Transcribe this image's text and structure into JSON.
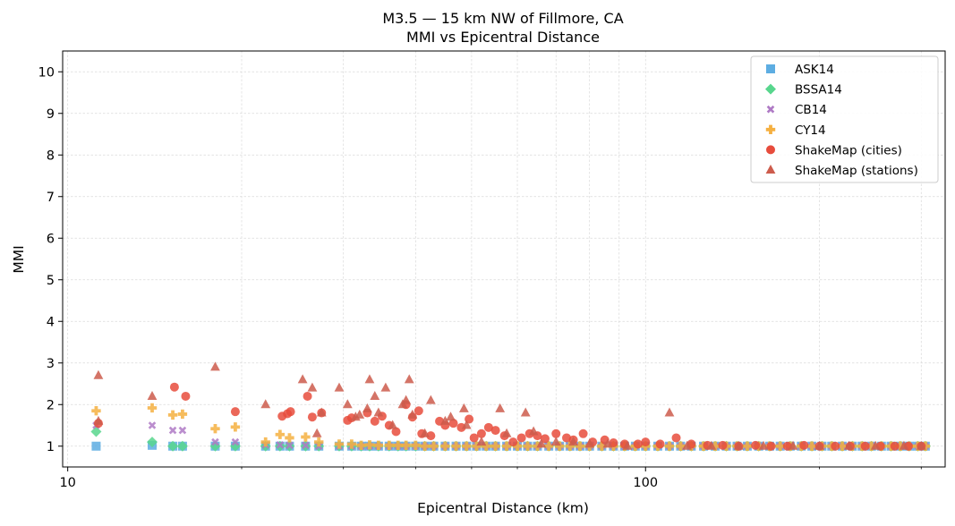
{
  "chart_data": {
    "type": "scatter",
    "title": "M3.5 — 15 km NW of Fillmore, CA",
    "subtitle": "MMI vs Epicentral Distance",
    "xlabel": "Epicentral Distance (km)",
    "ylabel": "MMI",
    "x_scale": "log",
    "xlim": [
      9.8,
      330
    ],
    "ylim": [
      0.5,
      10.5
    ],
    "x_ticks": [
      10,
      100
    ],
    "x_tick_labels": [
      "10",
      "100"
    ],
    "y_ticks": [
      1,
      2,
      3,
      4,
      5,
      6,
      7,
      8,
      9,
      10
    ],
    "y_tick_labels": [
      "1",
      "2",
      "3",
      "4",
      "5",
      "6",
      "7",
      "8",
      "9",
      "10"
    ],
    "grid": true,
    "legend_position": "top-right",
    "gmpe_distances": [
      11.2,
      14.0,
      15.2,
      15.8,
      18.0,
      19.5,
      22.0,
      23.3,
      24.2,
      25.8,
      27.2,
      29.5,
      31.0,
      32.2,
      33.3,
      34.5,
      36.0,
      37.3,
      38.5,
      40.0,
      41.5,
      43.0,
      45.0,
      47.0,
      49.0,
      51.0,
      53.0,
      55.0,
      57.5,
      60.0,
      62.5,
      65.0,
      68.0,
      71.0,
      74.0,
      77.0,
      80.0,
      84.0,
      88.0,
      92.0,
      96.0,
      100.0,
      105.0,
      110.0,
      115.0,
      120.0,
      126.0,
      132.0,
      138.0,
      144.0,
      150.0,
      157.0,
      164.0,
      171.0,
      178.0,
      186.0,
      194.0,
      202.0,
      210.0,
      219.0,
      228.0,
      237.0,
      246.0,
      256.0,
      266.0,
      276.0,
      286.0,
      296.0,
      305.0
    ],
    "series": [
      {
        "name": "ASK14",
        "color": "#5dade2",
        "marker": "square",
        "y": [
          1.0,
          1.02,
          1.0,
          1.0,
          1.0,
          1.0,
          1.0,
          1.0,
          1.0,
          1.0,
          1.0,
          1.0,
          1.0,
          1.0,
          1.0,
          1.0,
          1.0,
          1.0,
          1.0,
          1.0,
          1.0,
          1.0,
          1.0,
          1.0,
          1.0,
          1.0,
          1.0,
          1.0,
          1.0,
          1.0,
          1.0,
          1.0,
          1.0,
          1.0,
          1.0,
          1.0,
          1.0,
          1.0,
          1.0,
          1.0,
          1.0,
          1.0,
          1.0,
          1.0,
          1.0,
          1.0,
          1.0,
          1.0,
          1.0,
          1.0,
          1.0,
          1.0,
          1.0,
          1.0,
          1.0,
          1.0,
          1.0,
          1.0,
          1.0,
          1.0,
          1.0,
          1.0,
          1.0,
          1.0,
          1.0,
          1.0,
          1.0,
          1.0,
          1.0
        ]
      },
      {
        "name": "BSSA14",
        "color": "#58d68d",
        "marker": "diamond",
        "y": [
          1.35,
          1.1,
          1.0,
          1.0,
          1.0,
          1.0,
          1.0,
          1.0,
          1.0,
          1.0,
          1.0,
          1.0,
          1.0,
          1.0,
          1.0,
          1.0,
          1.0,
          1.0,
          1.0,
          1.0,
          1.0,
          1.0,
          1.0,
          1.0,
          1.0,
          1.0,
          1.0,
          1.0,
          1.0,
          1.0,
          1.0,
          1.0,
          1.0,
          1.0,
          1.0,
          1.0,
          1.0,
          1.0,
          1.0,
          1.0,
          1.0,
          1.0,
          1.0,
          1.0,
          1.0,
          1.0,
          1.0,
          1.0,
          1.0,
          1.0,
          1.0,
          1.0,
          1.0,
          1.0,
          1.0,
          1.0,
          1.0,
          1.0,
          1.0,
          1.0,
          1.0,
          1.0,
          1.0,
          1.0,
          1.0,
          1.0,
          1.0,
          1.0,
          1.0
        ]
      },
      {
        "name": "CB14",
        "color": "#af7ac5",
        "marker": "x",
        "y": [
          1.5,
          1.5,
          1.38,
          1.38,
          1.1,
          1.1,
          1.03,
          1.03,
          1.02,
          1.02,
          1.0,
          1.0,
          1.0,
          1.0,
          1.0,
          1.0,
          1.0,
          1.0,
          1.0,
          1.0,
          1.0,
          1.0,
          1.0,
          1.0,
          1.0,
          1.0,
          1.0,
          1.0,
          1.0,
          1.0,
          1.0,
          1.0,
          1.0,
          1.0,
          1.0,
          1.0,
          1.0,
          1.0,
          1.0,
          1.0,
          1.0,
          1.0,
          1.0,
          1.0,
          1.0,
          1.0,
          1.0,
          1.0,
          1.0,
          1.0,
          1.0,
          1.0,
          1.0,
          1.0,
          1.0,
          1.0,
          1.0,
          1.0,
          1.0,
          1.0,
          1.0,
          1.0,
          1.0,
          1.0,
          1.0,
          1.0,
          1.0,
          1.0,
          1.0
        ]
      },
      {
        "name": "CY14",
        "color": "#f5b041",
        "marker": "plus",
        "y": [
          1.85,
          1.92,
          1.75,
          1.77,
          1.42,
          1.46,
          1.1,
          1.28,
          1.2,
          1.22,
          1.1,
          1.05,
          1.05,
          1.02,
          1.03,
          1.02,
          1.02,
          1.02,
          1.02,
          1.02,
          1.0,
          1.0,
          1.0,
          1.0,
          1.0,
          1.0,
          1.0,
          1.0,
          1.0,
          1.0,
          1.0,
          1.0,
          1.0,
          1.0,
          1.0,
          1.0,
          1.0,
          1.0,
          1.0,
          1.0,
          1.0,
          1.0,
          1.0,
          1.0,
          1.0,
          1.0,
          1.0,
          1.0,
          1.0,
          1.0,
          1.0,
          1.0,
          1.0,
          1.0,
          1.0,
          1.0,
          1.0,
          1.0,
          1.0,
          1.0,
          1.0,
          1.0,
          1.0,
          1.0,
          1.0,
          1.0,
          1.0,
          1.0,
          1.0
        ]
      },
      {
        "name": "ShakeMap (cities)",
        "color": "#e74c3c",
        "marker": "circle",
        "points": [
          [
            11.3,
            1.55
          ],
          [
            15.3,
            2.42
          ],
          [
            16.0,
            2.2
          ],
          [
            19.5,
            1.83
          ],
          [
            23.5,
            1.72
          ],
          [
            24.0,
            1.78
          ],
          [
            24.3,
            1.83
          ],
          [
            26.0,
            2.2
          ],
          [
            26.5,
            1.7
          ],
          [
            27.5,
            1.8
          ],
          [
            30.5,
            1.62
          ],
          [
            31.0,
            1.68
          ],
          [
            33.0,
            1.8
          ],
          [
            34.0,
            1.6
          ],
          [
            35.0,
            1.72
          ],
          [
            36.0,
            1.5
          ],
          [
            37.0,
            1.35
          ],
          [
            38.5,
            2.0
          ],
          [
            39.5,
            1.7
          ],
          [
            40.5,
            1.85
          ],
          [
            41.0,
            1.3
          ],
          [
            42.5,
            1.25
          ],
          [
            44.0,
            1.6
          ],
          [
            45.0,
            1.5
          ],
          [
            46.5,
            1.55
          ],
          [
            48.0,
            1.45
          ],
          [
            49.5,
            1.65
          ],
          [
            50.5,
            1.2
          ],
          [
            52.0,
            1.3
          ],
          [
            53.5,
            1.45
          ],
          [
            55.0,
            1.38
          ],
          [
            57.0,
            1.25
          ],
          [
            59.0,
            1.1
          ],
          [
            61.0,
            1.2
          ],
          [
            63.0,
            1.3
          ],
          [
            65.0,
            1.25
          ],
          [
            67.0,
            1.18
          ],
          [
            70.0,
            1.3
          ],
          [
            73.0,
            1.2
          ],
          [
            75.0,
            1.15
          ],
          [
            78.0,
            1.3
          ],
          [
            81.0,
            1.1
          ],
          [
            85.0,
            1.15
          ],
          [
            88.0,
            1.08
          ],
          [
            92.0,
            1.05
          ],
          [
            97.0,
            1.05
          ],
          [
            100.0,
            1.1
          ],
          [
            106.0,
            1.05
          ],
          [
            113.0,
            1.2
          ],
          [
            120.0,
            1.05
          ],
          [
            128.0,
            1.02
          ],
          [
            136.0,
            1.02
          ],
          [
            145.0,
            1.0
          ],
          [
            155.0,
            1.02
          ],
          [
            165.0,
            1.0
          ],
          [
            176.0,
            1.0
          ],
          [
            188.0,
            1.02
          ],
          [
            200.0,
            1.0
          ],
          [
            213.0,
            1.0
          ],
          [
            226.0,
            1.0
          ],
          [
            240.0,
            1.0
          ],
          [
            255.0,
            1.0
          ],
          [
            270.0,
            1.0
          ],
          [
            285.0,
            1.0
          ],
          [
            300.0,
            1.0
          ]
        ]
      },
      {
        "name": "ShakeMap (stations)",
        "color": "#cd5c4c",
        "marker": "triangle",
        "points": [
          [
            11.3,
            2.7
          ],
          [
            11.3,
            1.6
          ],
          [
            14.0,
            2.2
          ],
          [
            18.0,
            2.9
          ],
          [
            22.0,
            2.0
          ],
          [
            25.5,
            2.6
          ],
          [
            26.5,
            2.4
          ],
          [
            27.0,
            1.3
          ],
          [
            27.5,
            1.8
          ],
          [
            29.5,
            2.4
          ],
          [
            30.5,
            2.0
          ],
          [
            31.5,
            1.7
          ],
          [
            32.0,
            1.75
          ],
          [
            33.0,
            1.9
          ],
          [
            33.3,
            2.6
          ],
          [
            34.0,
            2.2
          ],
          [
            34.5,
            1.8
          ],
          [
            35.5,
            2.4
          ],
          [
            36.5,
            1.5
          ],
          [
            38.0,
            2.0
          ],
          [
            38.5,
            2.1
          ],
          [
            39.0,
            2.6
          ],
          [
            39.5,
            1.75
          ],
          [
            41.5,
            1.3
          ],
          [
            42.5,
            2.1
          ],
          [
            45.0,
            1.6
          ],
          [
            46.0,
            1.7
          ],
          [
            48.5,
            1.9
          ],
          [
            49.0,
            1.5
          ],
          [
            52.0,
            1.1
          ],
          [
            56.0,
            1.9
          ],
          [
            57.5,
            1.3
          ],
          [
            62.0,
            1.8
          ],
          [
            64.0,
            1.35
          ],
          [
            66.0,
            1.05
          ],
          [
            70.0,
            1.1
          ],
          [
            75.0,
            1.1
          ],
          [
            80.0,
            1.05
          ],
          [
            86.0,
            1.05
          ],
          [
            93.0,
            1.0
          ],
          [
            110.0,
            1.8
          ],
          [
            118.0,
            1.0
          ],
          [
            130.0,
            1.0
          ],
          [
            145.0,
            1.0
          ],
          [
            160.0,
            1.0
          ],
          [
            180.0,
            1.0
          ],
          [
            200.0,
            1.0
          ],
          [
            225.0,
            1.0
          ],
          [
            250.0,
            1.0
          ],
          [
            280.0,
            1.0
          ],
          [
            300.0,
            1.0
          ]
        ]
      }
    ]
  }
}
